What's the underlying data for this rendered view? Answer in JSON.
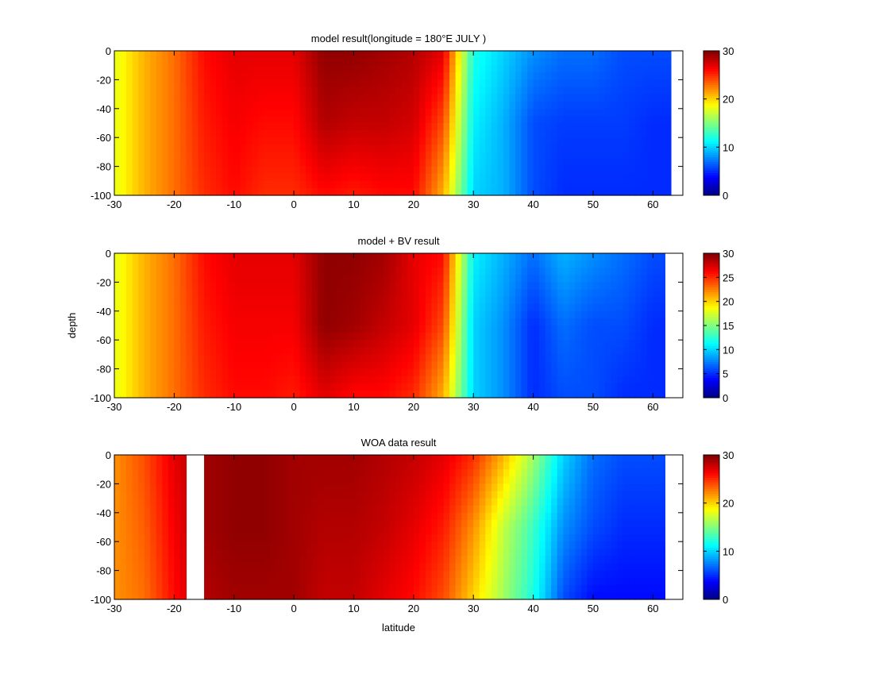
{
  "chart_data": {
    "type": "heatmap",
    "colormap": "jet",
    "xlabel": "latitude",
    "ylabel": "depth",
    "xlim": [
      -30,
      65
    ],
    "ylim": [
      -100,
      0
    ],
    "xticks": [
      -30,
      -20,
      -10,
      0,
      10,
      20,
      30,
      40,
      50,
      60
    ],
    "yticks": [
      0,
      -20,
      -40,
      -60,
      -80,
      -100
    ],
    "profile_depths": [
      0,
      -50,
      -100
    ],
    "lat_grid": [
      -30,
      -25,
      -20,
      -15,
      -10,
      -5,
      0,
      5,
      10,
      15,
      20,
      25,
      30,
      35,
      40,
      45,
      50,
      55,
      60,
      65
    ],
    "panels": [
      {
        "title": "model result(longitude = 180°E JULY )",
        "clim": [
          0,
          30
        ],
        "colorbar_ticks": [
          0,
          10,
          20,
          30
        ],
        "valid_max_lat": 62.5,
        "mask_ranges": [],
        "profiles": [
          [
            18,
            21,
            23,
            26,
            27,
            27,
            27,
            29.5,
            29.5,
            29,
            28.5,
            27,
            12,
            10,
            8,
            7,
            7,
            6,
            6,
            null
          ],
          [
            18,
            21,
            23,
            25.5,
            26.5,
            26,
            26,
            28.5,
            28,
            28,
            27.5,
            24,
            11,
            9,
            6,
            5.5,
            5.5,
            5.5,
            5,
            null
          ],
          [
            18,
            21,
            23,
            25,
            26,
            25,
            25,
            26,
            25.5,
            26,
            26,
            21,
            10,
            9,
            6,
            5,
            5,
            5,
            5,
            null
          ]
        ]
      },
      {
        "title": "model + BV result",
        "clim": [
          0,
          30
        ],
        "colorbar_ticks": [
          0,
          5,
          10,
          15,
          20,
          25,
          30
        ],
        "valid_max_lat": 61.5,
        "mask_ranges": [],
        "profiles": [
          [
            18,
            21,
            23,
            26,
            27,
            27,
            27,
            29.5,
            29.5,
            29,
            27,
            26,
            11,
            9,
            7,
            9,
            8,
            7,
            6,
            null
          ],
          [
            18,
            21,
            23,
            25.5,
            26.5,
            26.5,
            26.5,
            29.5,
            29,
            28,
            27,
            24,
            10,
            8,
            5,
            7,
            6,
            6,
            5,
            null
          ],
          [
            18,
            21,
            23,
            25,
            26,
            26,
            25.5,
            27,
            26,
            26,
            25,
            21,
            10,
            8,
            5,
            6,
            6,
            5,
            5,
            null
          ]
        ]
      },
      {
        "title": "WOA data result",
        "clim": [
          0,
          30
        ],
        "colorbar_ticks": [
          0,
          10,
          20,
          30
        ],
        "valid_max_lat": 61.5,
        "mask_ranges": [
          [
            -17.5,
            -15.5
          ]
        ],
        "profiles": [
          [
            22,
            24,
            27,
            29,
            29.5,
            29.5,
            29,
            29,
            29,
            28.5,
            28,
            27,
            25,
            21,
            16,
            10,
            7,
            6,
            6,
            null
          ],
          [
            22,
            23.5,
            26.5,
            29,
            29.5,
            29.5,
            29,
            28.5,
            28.5,
            28,
            27,
            25.5,
            22,
            17,
            13,
            8,
            6,
            5,
            5,
            null
          ],
          [
            22,
            23,
            26,
            28.5,
            29,
            29,
            29,
            28,
            28,
            27,
            26,
            24,
            20,
            16,
            12,
            6,
            4,
            4,
            4,
            null
          ]
        ]
      }
    ]
  }
}
